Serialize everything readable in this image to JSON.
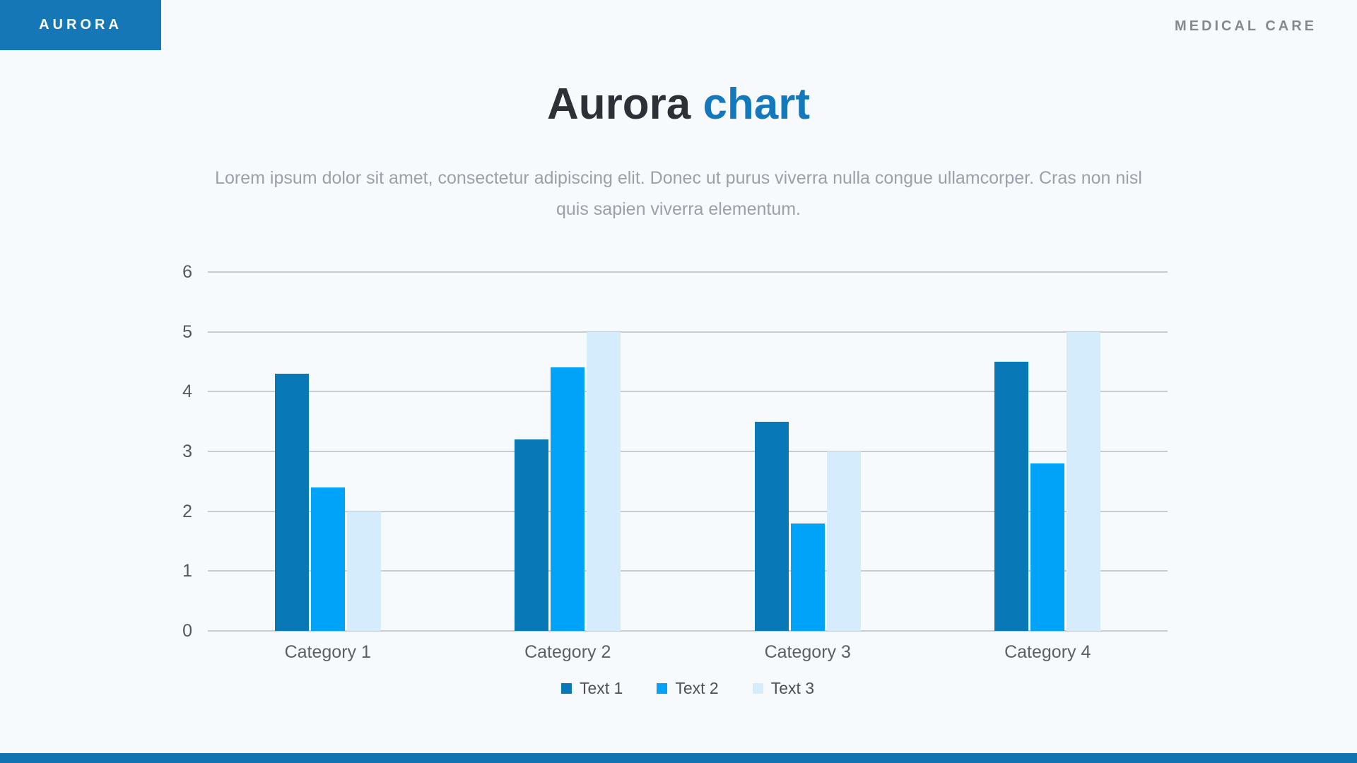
{
  "header": {
    "brand_badge": "AURORA",
    "brand_right": "MEDICAL CARE"
  },
  "title": {
    "prefix": "Aurora ",
    "accent": "chart"
  },
  "subtitle": {
    "lines": [
      "Lorem ipsum dolor sit amet, consectetur adipiscing elit. Donec ut purus viverra nulla congue ullamcorper. Cras non nisl",
      "quis sapien viverra elementum."
    ]
  },
  "colors": {
    "background": "#f7fafd",
    "brand_badge_bg": "#1577b5",
    "brand_badge_text": "#ffffff",
    "brand_right_text": "#85898e",
    "title_dark": "#2d3137",
    "title_accent": "#1478bd",
    "subtitle_text": "#9aa1a9",
    "gridline": "#c9cccd",
    "axis_text": "#54585e",
    "bottom_bar": "#1273b2"
  },
  "chart_data": {
    "type": "bar",
    "categories": [
      "Category 1",
      "Category 2",
      "Category 3",
      "Category 4"
    ],
    "series": [
      {
        "name": "Text 1",
        "color": "#0878b6",
        "values": [
          4.3,
          3.2,
          3.5,
          4.5
        ]
      },
      {
        "name": "Text 2",
        "color": "#01a3f8",
        "values": [
          2.4,
          4.4,
          1.8,
          2.8
        ]
      },
      {
        "name": "Text 3",
        "color": "#d4ecfb",
        "values": [
          2.0,
          5.0,
          3.0,
          5.0
        ]
      }
    ],
    "title": "Aurora chart",
    "xlabel": "",
    "ylabel": "",
    "ylim": [
      0,
      6
    ],
    "yticks": [
      0,
      1,
      2,
      3,
      4,
      5,
      6
    ],
    "grid": true,
    "legend_position": "bottom"
  }
}
